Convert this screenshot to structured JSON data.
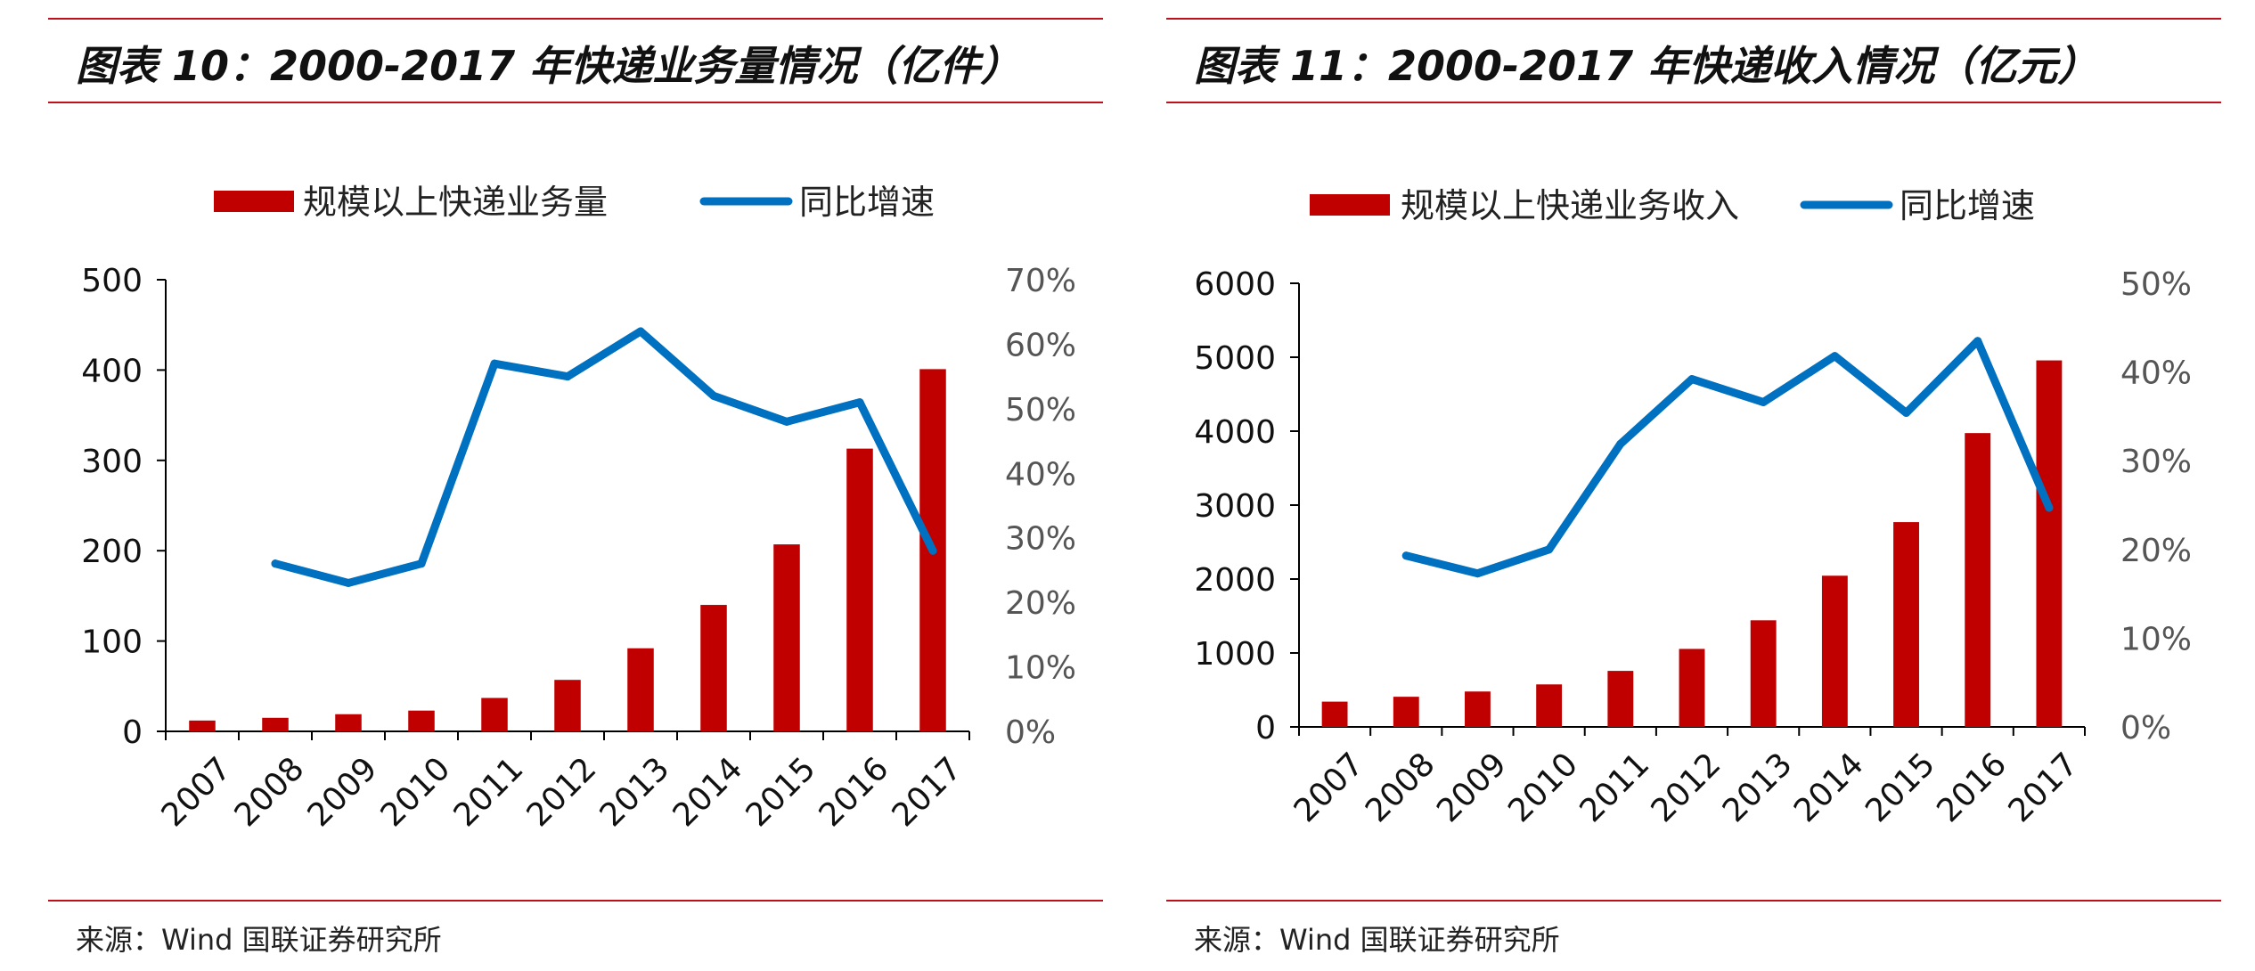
{
  "charts": [
    {
      "title": "图表 10：2000-2017 年快递业务量情况（亿件）",
      "source": "来源：Wind  国联证券研究所"
    },
    {
      "title": "图表 11：2000-2017 年快递收入情况（亿元）",
      "source": "来源：Wind  国联证券研究所"
    }
  ],
  "colors": {
    "bar": "#c00000",
    "line": "#0070c0",
    "rule": "#c0101c"
  },
  "chart_data": [
    {
      "type": "bar",
      "title": "图表 10：2000-2017 年快递业务量情况（亿件）",
      "categories": [
        "2007",
        "2008",
        "2009",
        "2010",
        "2011",
        "2012",
        "2013",
        "2014",
        "2015",
        "2016",
        "2017"
      ],
      "series": [
        {
          "name": "规模以上快递业务量",
          "type": "bar",
          "axis": "left",
          "values": [
            12,
            15,
            19,
            23,
            37,
            57,
            92,
            140,
            207,
            313,
            401
          ]
        },
        {
          "name": "同比增速",
          "type": "line",
          "axis": "right",
          "values": [
            null,
            26,
            23,
            26,
            57,
            55,
            62,
            52,
            48,
            51,
            28
          ]
        }
      ],
      "y_left": {
        "min": 0,
        "max": 500,
        "step": 100,
        "ticks": [
          "0",
          "100",
          "200",
          "300",
          "400",
          "500"
        ]
      },
      "y_right": {
        "min": 0,
        "max": 70,
        "step": 10,
        "ticks": [
          "0%",
          "10%",
          "20%",
          "30%",
          "40%",
          "50%",
          "60%",
          "70%"
        ]
      },
      "legend": "top",
      "grid": false
    },
    {
      "type": "bar",
      "title": "图表 11：2000-2017 年快递收入情况（亿元）",
      "categories": [
        "2007",
        "2008",
        "2009",
        "2010",
        "2011",
        "2012",
        "2013",
        "2014",
        "2015",
        "2016",
        "2017"
      ],
      "series": [
        {
          "name": "规模以上快递业务收入",
          "type": "bar",
          "axis": "left",
          "values": [
            342,
            408,
            479,
            575,
            758,
            1055,
            1442,
            2045,
            2770,
            3974,
            4957
          ]
        },
        {
          "name": "同比增速",
          "type": "line",
          "axis": "right",
          "values": [
            null,
            19.3,
            17.3,
            20.0,
            31.9,
            39.2,
            36.6,
            41.8,
            35.4,
            43.5,
            24.7
          ]
        }
      ],
      "y_left": {
        "min": 0,
        "max": 6000,
        "step": 1000,
        "ticks": [
          "0",
          "1000",
          "2000",
          "3000",
          "4000",
          "5000",
          "6000"
        ]
      },
      "y_right": {
        "min": 0,
        "max": 50,
        "step": 10,
        "ticks": [
          "0%",
          "10%",
          "20%",
          "30%",
          "40%",
          "50%"
        ]
      },
      "legend": "top",
      "grid": false
    }
  ]
}
